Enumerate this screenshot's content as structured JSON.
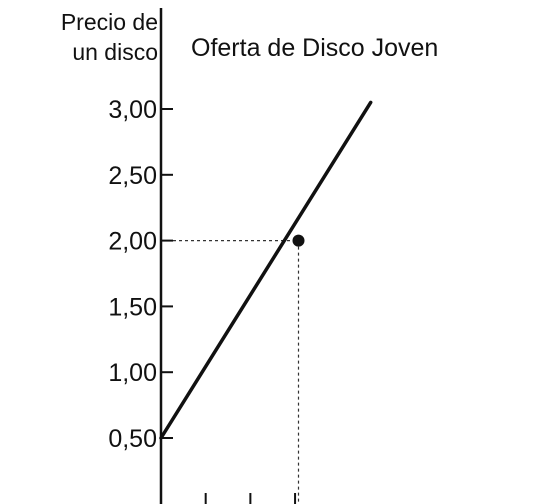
{
  "chart_data": {
    "type": "line",
    "title": "Oferta de Disco Joven",
    "ylabel": [
      "Precio de",
      "un disco"
    ],
    "xlabel": "",
    "yticks": [
      "3,00",
      "2,50",
      "2,00",
      "1,50",
      "1,00",
      "0,50"
    ],
    "ytick_values": [
      3.0,
      2.5,
      2.0,
      1.5,
      1.0,
      0.5
    ],
    "ylim": [
      0.5,
      3.0
    ],
    "series": [
      {
        "x": [
          0,
          3.05
        ],
        "y": [
          0.5,
          3.05
        ]
      }
    ],
    "highlight_point": {
      "x": 2,
      "y": 2.0
    },
    "grid": false,
    "line_color": "#111111"
  }
}
